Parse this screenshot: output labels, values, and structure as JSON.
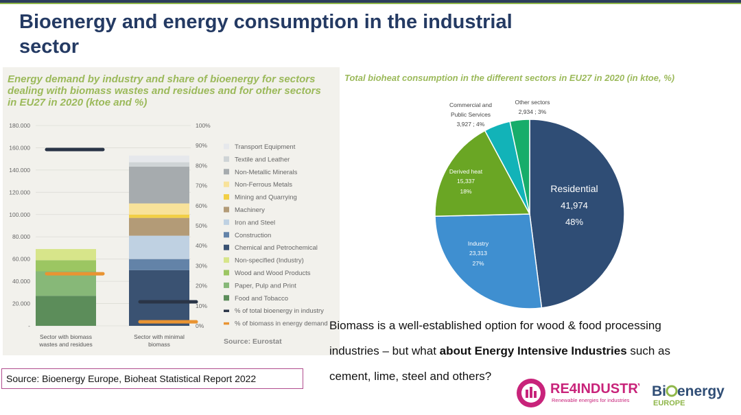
{
  "title": "Bioenergy and energy consumption in the industrial sector",
  "left_chart_title": "Energy demand by industry and share of bioenergy for sectors dealing with biomass wastes and residues and for other sectors in EU27 in 2020 (ktoe and %)",
  "right_chart_title": "Total bioheat consumption in the different sectors in EU27 in 2020 (in ktoe, %)",
  "body": {
    "part1": "Biomass is a well-established option for wood & food processing industries – but what ",
    "bold": "about Energy Intensive Industries",
    "part2": " such as cement, lime, steel and others?"
  },
  "source": "Source: Bioenergy Europe, Bioheat Statistical Report 2022",
  "logos": {
    "re4": "RE4INDUSTRY",
    "re4_sub": "Renewable energies for industries",
    "bio_a": "Bi",
    "bio_b": "energy",
    "bio_sub": "EUROPE"
  },
  "colors": {
    "navy": "#243a63",
    "green_title": "#9bb95a",
    "residential": "#2f4d75",
    "industry": "#3f8fd0",
    "derived_heat": "#6aa624",
    "commercial": "#12b3b8",
    "other": "#17ad6a"
  },
  "chart_data": [
    {
      "type": "bar",
      "stacked": true,
      "title": "Energy demand by industry and share of bioenergy for sectors dealing with biomass wastes and residues and for other sectors in EU27 in 2020 (ktoe and %)",
      "categories": [
        "Sector with biomass wastes and residues",
        "Sector with minimal biomass"
      ],
      "ylim": [
        0,
        180000
      ],
      "ylim_right": [
        0,
        100
      ],
      "y_ticks": [
        "-",
        "20.000",
        "40.000",
        "60.000",
        "80.000",
        "100.000",
        "120.000",
        "140.000",
        "160.000",
        "180.000"
      ],
      "y2_ticks": [
        "0%",
        "10%",
        "20%",
        "30%",
        "40%",
        "50%",
        "60%",
        "70%",
        "80%",
        "90%",
        "100%"
      ],
      "series": [
        {
          "name": "Food and Tobacco",
          "color": "#5c8d5a",
          "values": [
            27000,
            0
          ]
        },
        {
          "name": "Paper, Pulp and Print",
          "color": "#87b878",
          "values": [
            22000,
            0
          ]
        },
        {
          "name": "Wood and Wood Products",
          "color": "#9cc662",
          "values": [
            10000,
            0
          ]
        },
        {
          "name": "Non-specified (Industry)",
          "color": "#d7e58a",
          "values": [
            10000,
            0
          ]
        },
        {
          "name": "Chemical and Petrochemical",
          "color": "#3a5272",
          "values": [
            0,
            50000
          ]
        },
        {
          "name": "Construction",
          "color": "#6383a8",
          "values": [
            0,
            10000
          ]
        },
        {
          "name": "Iron and Steel",
          "color": "#bfd1e2",
          "values": [
            0,
            21000
          ]
        },
        {
          "name": "Machinery",
          "color": "#b39b77",
          "values": [
            0,
            16000
          ]
        },
        {
          "name": "Mining and Quarrying",
          "color": "#f2cf45",
          "values": [
            0,
            3000
          ]
        },
        {
          "name": "Non-Ferrous Metals",
          "color": "#f8e29a",
          "values": [
            0,
            10000
          ]
        },
        {
          "name": "Non-Metallic Minerals",
          "color": "#a6abae",
          "values": [
            0,
            33000
          ]
        },
        {
          "name": "Textile and Leather",
          "color": "#cfd4d6",
          "values": [
            0,
            4000
          ]
        },
        {
          "name": "Transport Equipment",
          "color": "#e6e8ec",
          "values": [
            0,
            6000
          ]
        }
      ],
      "markers": [
        {
          "name": "% of total bioenergy in industry",
          "color": "#2a3547",
          "values": [
            88,
            12
          ]
        },
        {
          "name": "% of biomass in energy demand",
          "color": "#e99432",
          "values": [
            26,
            2
          ]
        }
      ],
      "source_label": "Source: Eurostat"
    },
    {
      "type": "pie",
      "title": "Total bioheat consumption in the different sectors in EU27 in 2020 (in ktoe, %)",
      "slices": [
        {
          "name": "Residential",
          "value": 41974,
          "value_label": "41,974",
          "pct_label": "48%",
          "color": "#2f4d75"
        },
        {
          "name": "Industry",
          "value": 23313,
          "value_label": "23,313",
          "pct_label": "27%",
          "color": "#3f8fd0"
        },
        {
          "name": "Derived heat",
          "value": 15337,
          "value_label": "15,337",
          "pct_label": "18%",
          "color": "#6aa624"
        },
        {
          "name": "Commercial and Public Services",
          "name_lines": [
            "Commercial and",
            "Public Services"
          ],
          "value": 3927,
          "value_label": "3,927 ; 4%",
          "color": "#12b3b8"
        },
        {
          "name": "Other sectors",
          "value": 2934,
          "value_label": "2,934 ; 3%",
          "color": "#17ad6a"
        }
      ]
    }
  ]
}
